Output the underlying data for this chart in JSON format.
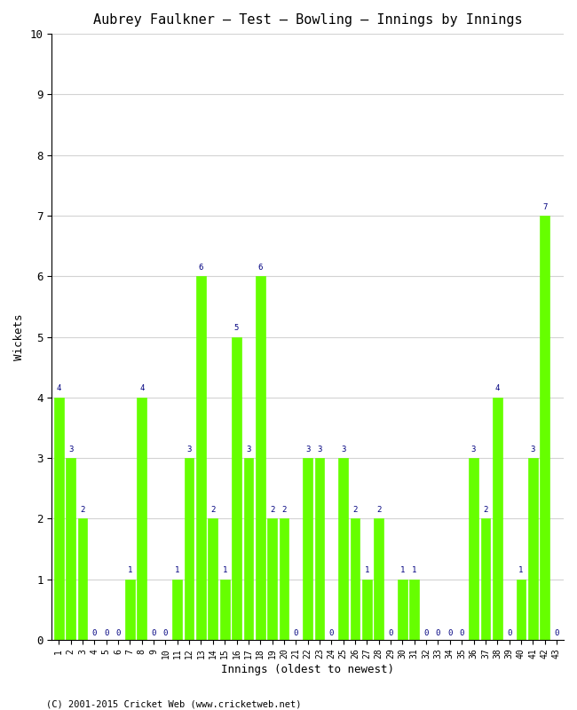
{
  "title": "Aubrey Faulkner – Test – Bowling – Innings by Innings",
  "xlabel": "Innings (oldest to newest)",
  "ylabel": "Wickets",
  "footer": "(C) 2001-2015 Cricket Web (www.cricketweb.net)",
  "bar_color": "#66ff00",
  "bar_edge_color": "#66ff00",
  "label_color": "#000080",
  "ylim": [
    0,
    10
  ],
  "yticks": [
    0,
    1,
    2,
    3,
    4,
    5,
    6,
    7,
    8,
    9,
    10
  ],
  "innings": [
    1,
    2,
    3,
    4,
    5,
    6,
    7,
    8,
    9,
    10,
    11,
    12,
    13,
    14,
    15,
    16,
    17,
    18,
    19,
    20,
    21,
    22,
    23,
    24,
    25,
    26,
    27,
    28,
    29,
    30,
    31,
    32,
    33,
    34,
    35,
    36,
    37,
    38,
    39,
    40,
    41,
    42,
    43
  ],
  "wickets": [
    4,
    3,
    2,
    0,
    0,
    0,
    1,
    4,
    0,
    0,
    1,
    3,
    6,
    2,
    1,
    5,
    3,
    6,
    2,
    2,
    0,
    3,
    3,
    0,
    3,
    2,
    1,
    2,
    0,
    1,
    1,
    0,
    0,
    0,
    0,
    3,
    2,
    4,
    0,
    1,
    3,
    7,
    0
  ]
}
